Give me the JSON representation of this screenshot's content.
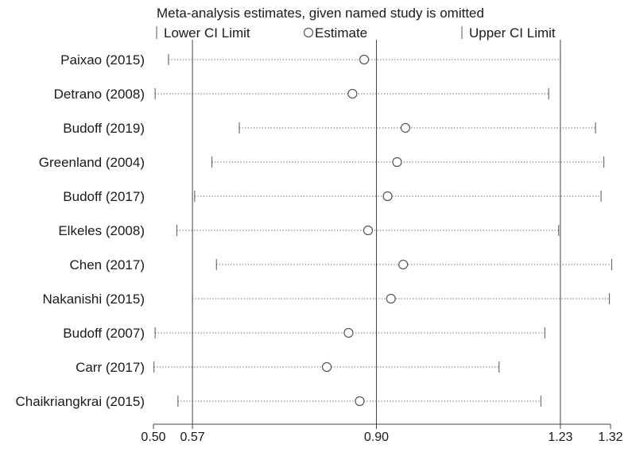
{
  "chart_data": {
    "type": "forest",
    "title": "Meta-analysis estimates, given named study is omitted",
    "legend": {
      "placement": "top",
      "items": [
        {
          "symbol": "bar",
          "label": "Lower CI Limit"
        },
        {
          "symbol": "circle",
          "label": "Estimate"
        },
        {
          "symbol": "bar",
          "label": "Upper CI Limit"
        }
      ]
    },
    "x_axis": {
      "range": [
        0.5,
        1.32
      ],
      "ticks": [
        {
          "value": 0.5,
          "label": "0.50"
        },
        {
          "value": 0.57,
          "label": "0.57"
        },
        {
          "value": 0.9,
          "label": "0.90"
        },
        {
          "value": 1.23,
          "label": "1.23"
        },
        {
          "value": 1.32,
          "label": "1.32"
        }
      ],
      "reference_lines": [
        0.57,
        0.9,
        1.23
      ]
    },
    "studies": [
      {
        "name": "Paixao (2015)",
        "lower": 0.527,
        "estimate": 0.878,
        "upper": 1.23
      },
      {
        "name": "Detrano (2008)",
        "lower": 0.503,
        "estimate": 0.857,
        "upper": 1.209
      },
      {
        "name": "Budoff (2019)",
        "lower": 0.654,
        "estimate": 0.952,
        "upper": 1.293
      },
      {
        "name": "Greenland (2004)",
        "lower": 0.605,
        "estimate": 0.937,
        "upper": 1.308
      },
      {
        "name": "Budoff (2017)",
        "lower": 0.574,
        "estimate": 0.92,
        "upper": 1.303
      },
      {
        "name": "Elkeles (2008)",
        "lower": 0.542,
        "estimate": 0.885,
        "upper": 1.227
      },
      {
        "name": "Chen (2017)",
        "lower": 0.613,
        "estimate": 0.948,
        "upper": 1.322
      },
      {
        "name": "Nakanishi (2015)",
        "lower": 0.57,
        "estimate": 0.926,
        "upper": 1.318
      },
      {
        "name": "Budoff (2007)",
        "lower": 0.503,
        "estimate": 0.85,
        "upper": 1.202
      },
      {
        "name": "Carr (2017)",
        "lower": 0.501,
        "estimate": 0.811,
        "upper": 1.12
      },
      {
        "name": "Chaikriangkrai (2015)",
        "lower": 0.544,
        "estimate": 0.87,
        "upper": 1.195
      }
    ]
  }
}
